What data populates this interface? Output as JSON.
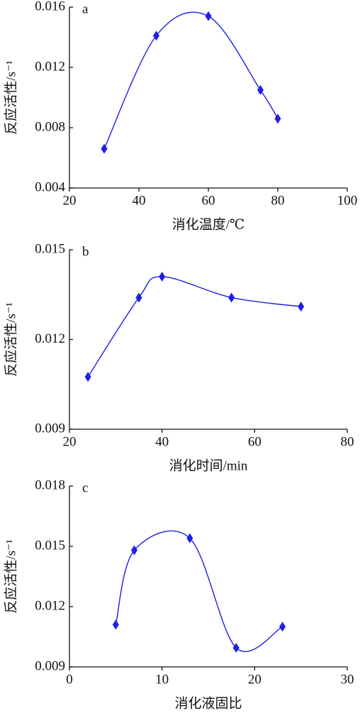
{
  "chart_data": [
    {
      "type": "line",
      "annotation": "a",
      "xlabel": "消化温度/℃",
      "ylabel": "反应活性/s⁻¹",
      "x": [
        30,
        45,
        60,
        75,
        80
      ],
      "values": [
        0.0066,
        0.0141,
        0.0154,
        0.0105,
        0.0086
      ],
      "color": "#1f1fe6",
      "smooth": true,
      "xlim": [
        20,
        100
      ],
      "xticks": [
        20,
        40,
        60,
        80,
        100
      ],
      "ylim": [
        0.004,
        0.016
      ],
      "yticks": [
        0.004,
        0.008,
        0.012,
        0.016
      ]
    },
    {
      "type": "line",
      "annotation": "b",
      "xlabel": "消化时间/min",
      "ylabel": "反应活性/s⁻¹",
      "x": [
        24,
        35,
        40,
        55,
        70
      ],
      "values": [
        0.01075,
        0.0134,
        0.0141,
        0.0134,
        0.0131
      ],
      "color": "#1f1fe6",
      "smooth": true,
      "xlim": [
        20,
        80
      ],
      "xticks": [
        20,
        40,
        60,
        80
      ],
      "ylim": [
        0.009,
        0.015
      ],
      "yticks": [
        0.009,
        0.012,
        0.015
      ]
    },
    {
      "type": "line",
      "annotation": "c",
      "xlabel": "消化液固比",
      "ylabel": "反应活性/s⁻¹",
      "x": [
        5,
        7,
        13,
        18,
        23
      ],
      "values": [
        0.0111,
        0.0148,
        0.0154,
        0.00995,
        0.011
      ],
      "color": "#1f1fe6",
      "smooth": true,
      "xlim": [
        0,
        30
      ],
      "xticks": [
        0,
        10,
        20,
        30
      ],
      "ylim": [
        0.009,
        0.018
      ],
      "yticks": [
        0.009,
        0.012,
        0.015,
        0.018
      ]
    }
  ]
}
